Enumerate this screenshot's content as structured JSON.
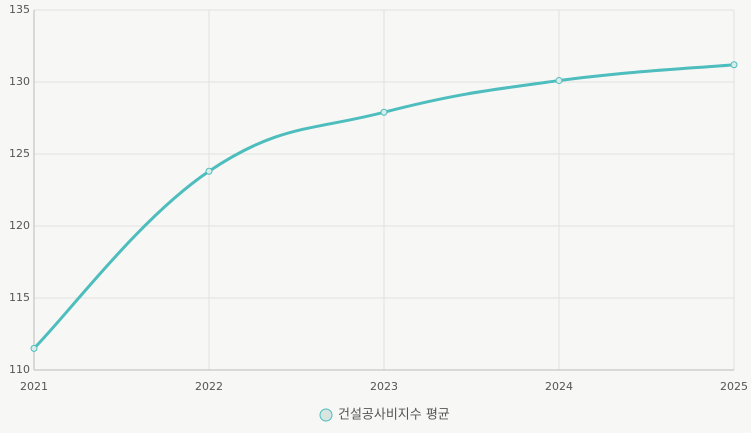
{
  "chart_data": {
    "type": "line",
    "categories": [
      "2021",
      "2022",
      "2023",
      "2024",
      "2025"
    ],
    "series": [
      {
        "name": "건설공사비지수 평균",
        "color": "#4dbdbd",
        "values": [
          111.5,
          123.8,
          127.9,
          130.1,
          131.2
        ]
      }
    ],
    "ylim": [
      110,
      135
    ],
    "yticks": [
      110,
      115,
      120,
      125,
      130,
      135
    ],
    "grid": true,
    "legend": "bottom"
  }
}
